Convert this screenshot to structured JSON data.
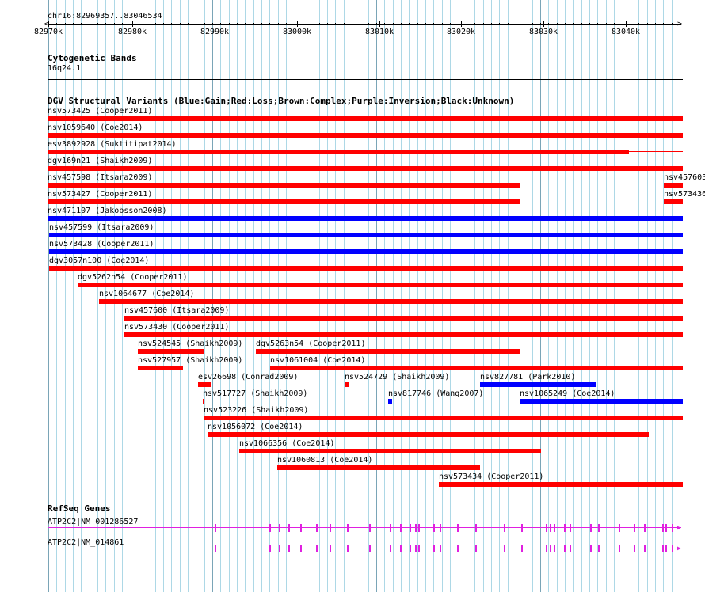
{
  "colors": {
    "gain": "#0000ff",
    "loss": "#ff0000",
    "gene": "#e020e0",
    "grid": "#add8e6"
  },
  "ruler": {
    "location": "chr16:82969357..83046534",
    "ticks": [
      "82970k",
      "82980k",
      "82990k",
      "83000k",
      "83010k",
      "83020k",
      "83030k",
      "83040k"
    ]
  },
  "cytoband": {
    "title": "Cytogenetic Bands",
    "band": "16q24.1"
  },
  "dgv": {
    "title": "DGV Structural Variants (Blue:Gain;Red:Loss;Brown:Complex;Purple:Inversion;Black:Unknown)",
    "variants": [
      {
        "label": "nsv573425 (Cooper2011)",
        "type": "loss"
      },
      {
        "label": "nsv1059640 (Coe2014)",
        "type": "loss"
      },
      {
        "label": "esv3892928 (Suktitipat2014)",
        "type": "loss"
      },
      {
        "label": "dgv169n21 (Shaikh2009)",
        "type": "loss"
      },
      {
        "label": "nsv457598 (Itsara2009)",
        "type": "loss"
      },
      {
        "label": "nsv457603",
        "type": "loss"
      },
      {
        "label": "nsv573427 (Cooper2011)",
        "type": "loss"
      },
      {
        "label": "nsv573436",
        "type": "loss"
      },
      {
        "label": "nsv471107 (Jakobsson2008)",
        "type": "gain"
      },
      {
        "label": "nsv457599 (Itsara2009)",
        "type": "gain"
      },
      {
        "label": "nsv573428 (Cooper2011)",
        "type": "gain"
      },
      {
        "label": "dgv3057n100 (Coe2014)",
        "type": "loss"
      },
      {
        "label": "dgv5262n54 (Cooper2011)",
        "type": "loss"
      },
      {
        "label": "nsv1064677 (Coe2014)",
        "type": "loss"
      },
      {
        "label": "nsv457600 (Itsara2009)",
        "type": "loss"
      },
      {
        "label": "nsv573430 (Cooper2011)",
        "type": "loss"
      },
      {
        "label": "nsv524545 (Shaikh2009)",
        "type": "loss"
      },
      {
        "label": "dgv5263n54 (Cooper2011)",
        "type": "loss"
      },
      {
        "label": "nsv527957 (Shaikh2009)",
        "type": "loss"
      },
      {
        "label": "nsv1061004 (Coe2014)",
        "type": "loss"
      },
      {
        "label": "esv26698 (Conrad2009)",
        "type": "loss"
      },
      {
        "label": "nsv524729 (Shaikh2009)",
        "type": "loss"
      },
      {
        "label": "nsv827781 (Park2010)",
        "type": "gain"
      },
      {
        "label": "nsv517727 (Shaikh2009)",
        "type": "loss"
      },
      {
        "label": "nsv817746 (Wang2007)",
        "type": "gain"
      },
      {
        "label": "nsv1065249 (Coe2014)",
        "type": "gain"
      },
      {
        "label": "nsv523226 (Shaikh2009)",
        "type": "loss"
      },
      {
        "label": "nsv1056072 (Coe2014)",
        "type": "loss"
      },
      {
        "label": "nsv1066356 (Coe2014)",
        "type": "loss"
      },
      {
        "label": "nsv1060813 (Coe2014)",
        "type": "loss"
      },
      {
        "label": "nsv573434 (Cooper2011)",
        "type": "loss"
      }
    ]
  },
  "refseq": {
    "title": "RefSeq Genes",
    "genes": [
      {
        "label": "ATP2C2|NM_001286527"
      },
      {
        "label": "ATP2C2|NM_014861"
      }
    ]
  }
}
